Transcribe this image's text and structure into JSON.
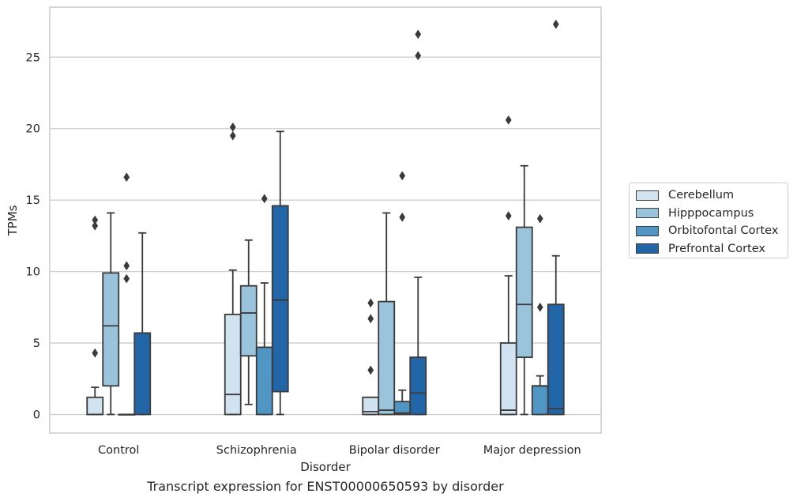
{
  "chart_data": {
    "type": "box",
    "xlabel": "Disorder",
    "ylabel": "TPMs",
    "ylim": [
      -1.3,
      28.5
    ],
    "yticks": [
      0,
      5,
      10,
      15,
      20,
      25
    ],
    "grid": "horizontal",
    "legend_position": "right",
    "categories": [
      "Control",
      "Schizophrenia",
      "Bipolar disorder",
      "Major depression"
    ],
    "series": [
      {
        "name": "Cerebellum",
        "color": "#d1e2f0",
        "boxes": [
          {
            "min": 0,
            "q1": 0,
            "median": 0,
            "q3": 1.2,
            "max": 1.9,
            "outliers": [
              4.3,
              13.2,
              13.6
            ]
          },
          {
            "min": 0,
            "q1": 0,
            "median": 1.4,
            "q3": 7.0,
            "max": 10.1,
            "outliers": [
              19.5,
              20.1
            ]
          },
          {
            "min": 0,
            "q1": 0,
            "median": 0.2,
            "q3": 1.2,
            "max": 1.2,
            "outliers": [
              3.1,
              6.7,
              7.8
            ]
          },
          {
            "min": 0,
            "q1": 0,
            "median": 0.3,
            "q3": 5.0,
            "max": 9.7,
            "outliers": [
              13.9,
              20.6
            ]
          }
        ]
      },
      {
        "name": "Hipppocampus",
        "color": "#9ac3dc",
        "boxes": [
          {
            "min": 0,
            "q1": 2.0,
            "median": 6.2,
            "q3": 9.9,
            "max": 14.1,
            "outliers": []
          },
          {
            "min": 0.7,
            "q1": 4.1,
            "median": 7.1,
            "q3": 9.0,
            "max": 12.2,
            "outliers": []
          },
          {
            "min": 0,
            "q1": 0,
            "median": 0.3,
            "q3": 7.9,
            "max": 14.1,
            "outliers": []
          },
          {
            "min": 0,
            "q1": 4.0,
            "median": 7.7,
            "q3": 13.1,
            "max": 17.4,
            "outliers": []
          }
        ]
      },
      {
        "name": "Orbitofontal Cortex",
        "color": "#5195c4",
        "boxes": [
          {
            "min": 0,
            "q1": 0,
            "median": 0,
            "q3": 0,
            "max": 0,
            "outliers": [
              9.5,
              10.4,
              16.6
            ]
          },
          {
            "min": 0,
            "q1": 0,
            "median": 4.7,
            "q3": 4.7,
            "max": 9.2,
            "outliers": [
              15.1
            ]
          },
          {
            "min": 0,
            "q1": 0,
            "median": 0.1,
            "q3": 0.9,
            "max": 1.7,
            "outliers": [
              13.8,
              16.7
            ]
          },
          {
            "min": 0,
            "q1": 0,
            "median": 2.0,
            "q3": 2.0,
            "max": 2.7,
            "outliers": [
              7.5,
              13.7
            ]
          }
        ]
      },
      {
        "name": "Prefrontal Cortex",
        "color": "#2366a8",
        "boxes": [
          {
            "min": 0,
            "q1": 0,
            "median": 5.7,
            "q3": 5.7,
            "max": 12.7,
            "outliers": []
          },
          {
            "min": 0,
            "q1": 1.6,
            "median": 8.0,
            "q3": 14.6,
            "max": 19.8,
            "outliers": []
          },
          {
            "min": 0,
            "q1": 0,
            "median": 1.5,
            "q3": 4.0,
            "max": 9.6,
            "outliers": [
              25.1,
              26.6
            ]
          },
          {
            "min": 0,
            "q1": 0,
            "median": 0.4,
            "q3": 7.7,
            "max": 11.1,
            "outliers": [
              27.3
            ]
          }
        ]
      }
    ],
    "caption": "Transcript expression for ENST00000650593 by disorder"
  }
}
